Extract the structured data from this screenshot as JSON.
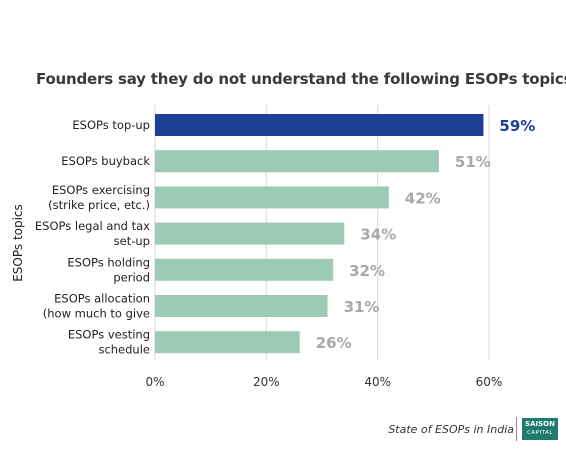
{
  "chart_data": {
    "type": "bar",
    "orientation": "horizontal",
    "title": "Founders say they do not understand the following ESOPs topics:",
    "ylabel": "ESOPs topics",
    "xlabel": "",
    "xlim": [
      0,
      60
    ],
    "x_ticks": [
      "0%",
      "20%",
      "40%",
      "60%"
    ],
    "x_tick_values": [
      0,
      20,
      40,
      60
    ],
    "grid": true,
    "categories": [
      [
        "ESOPs top-up"
      ],
      [
        "ESOPs buyback"
      ],
      [
        "ESOPs exercising",
        "(strike price, etc.)"
      ],
      [
        "ESOPs legal and tax",
        "set-up"
      ],
      [
        "ESOPs holding",
        "period"
      ],
      [
        "ESOPs allocation",
        "(how much to give"
      ],
      [
        "ESOPs vesting",
        "schedule"
      ]
    ],
    "values": [
      59,
      51,
      42,
      34,
      32,
      31,
      26
    ],
    "value_labels": [
      "59%",
      "51%",
      "42%",
      "34%",
      "32%",
      "31%",
      "26%"
    ],
    "highlight_index": 0,
    "colors": {
      "highlight": "#1d3f94",
      "bar": "#9ccab5",
      "highlight_label": "#1d3f94",
      "label": "#a8a8a8",
      "grid": "#d9d9d9"
    }
  },
  "footer": {
    "source": "State of ESOPs in India",
    "logo_line1": "SAISON",
    "logo_line2": "CAPITAL"
  }
}
